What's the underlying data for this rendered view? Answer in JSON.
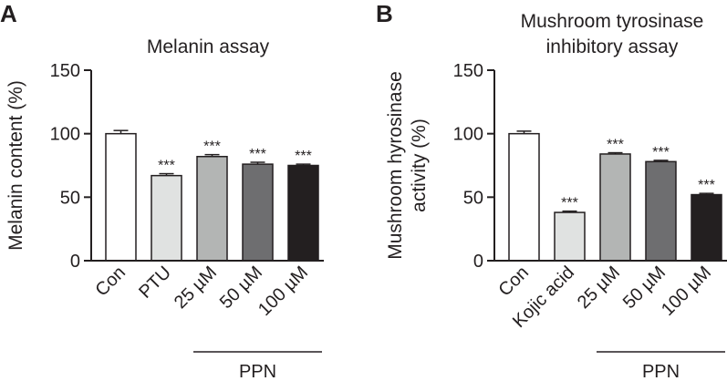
{
  "chart_data": [
    {
      "type": "bar",
      "panel": "A",
      "title": "Melanin assay",
      "ylabel": "Melanin content (%)",
      "xlabel": "",
      "ylim": [
        0,
        150
      ],
      "yticks": [
        "0",
        "50",
        "100",
        "150"
      ],
      "categories": [
        "Con",
        "PTU",
        "25 µM",
        "50 µM",
        "100 µM"
      ],
      "values": [
        100,
        67,
        82,
        76,
        75
      ],
      "errors": [
        2.5,
        1.5,
        1.5,
        1.5,
        1
      ],
      "colors": [
        "#ffffff",
        "#e0e2e1",
        "#b3b5b4",
        "#6e6e70",
        "#231f20"
      ],
      "significance": [
        "",
        "***",
        "***",
        "***",
        "***"
      ],
      "group": {
        "label": "PPN",
        "from": 2,
        "to": 4
      }
    },
    {
      "type": "bar",
      "panel": "B",
      "title": [
        "Mushroom tyrosinase",
        "inhibitory assay"
      ],
      "ylabel": [
        "Mushroom hyrosinase",
        "activity (%)"
      ],
      "xlabel": "",
      "ylim": [
        0,
        150
      ],
      "yticks": [
        "0",
        "50",
        "100",
        "150"
      ],
      "categories": [
        "Con",
        "Kojic acid",
        "25 µM",
        "50 µM",
        "100 µM"
      ],
      "values": [
        100,
        38,
        84,
        78,
        52
      ],
      "errors": [
        2,
        1,
        1,
        1,
        1
      ],
      "colors": [
        "#ffffff",
        "#e0e2e1",
        "#b3b5b4",
        "#6e6e70",
        "#231f20"
      ],
      "significance": [
        "",
        "***",
        "***",
        "***",
        "***"
      ],
      "group": {
        "label": "PPN",
        "from": 2,
        "to": 4
      }
    }
  ]
}
